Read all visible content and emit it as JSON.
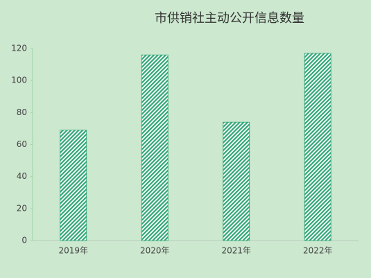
{
  "chart_data": {
    "type": "bar",
    "title": "市供销社主动公开信息数量",
    "categories": [
      "2019年",
      "2020年",
      "2021年",
      "2022年"
    ],
    "values": [
      69,
      116,
      74,
      117
    ],
    "color": "#2fa676",
    "ylim": [
      0,
      120
    ],
    "yticks": [
      0,
      20,
      40,
      60,
      80,
      100,
      120
    ],
    "grid": false
  }
}
